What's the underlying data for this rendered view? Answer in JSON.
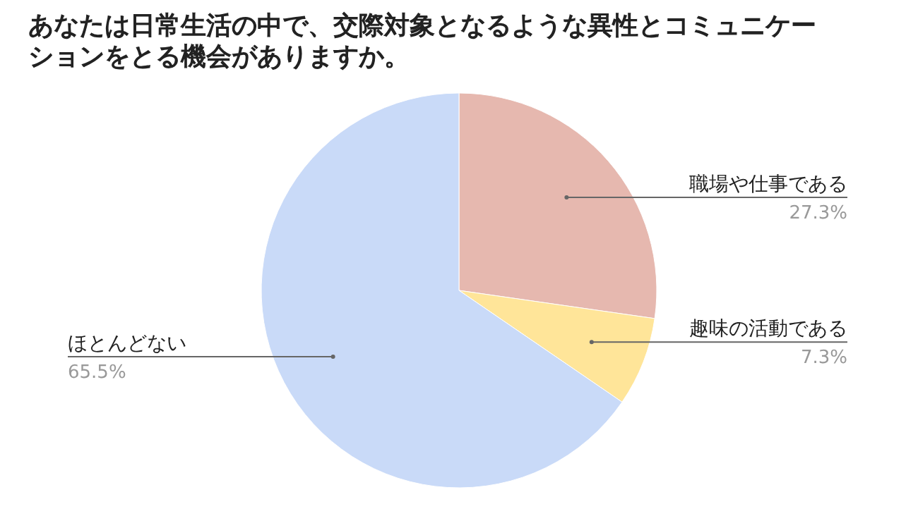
{
  "chart_data": {
    "type": "pie",
    "title": "あなたは日常生活の中で、交際対象となるような異性とコミュニケーションをとる機会がありますか。",
    "categories": [
      "職場や仕事である",
      "趣味の活動である",
      "ほとんどない"
    ],
    "values": [
      27.3,
      7.3,
      65.5
    ],
    "colors": [
      "#e6b8af",
      "#ffe599",
      "#c9daf8"
    ],
    "value_labels": [
      "27.3%",
      "7.3%",
      "65.5%"
    ]
  }
}
